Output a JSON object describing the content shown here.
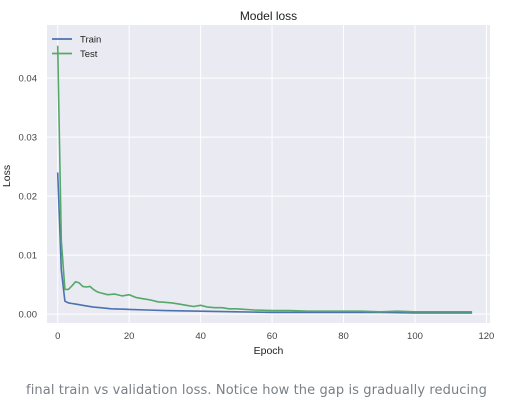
{
  "chart_data": {
    "type": "line",
    "title": "Model loss",
    "xlabel": "Epoch",
    "ylabel": "Loss",
    "xlim": [
      -3,
      121
    ],
    "ylim": [
      -0.0015,
      0.049
    ],
    "xticks": [
      0,
      20,
      40,
      60,
      80,
      100,
      120
    ],
    "yticks": [
      0.0,
      0.01,
      0.02,
      0.03,
      0.04
    ],
    "xtick_labels": [
      "0",
      "20",
      "40",
      "60",
      "80",
      "100",
      "120"
    ],
    "ytick_labels": [
      "0.00",
      "0.01",
      "0.02",
      "0.03",
      "0.04"
    ],
    "grid": true,
    "legend_position": "top-left",
    "series": [
      {
        "name": "Train",
        "color": "#4c72b0",
        "x": [
          0,
          1,
          2,
          3,
          4,
          5,
          6,
          8,
          10,
          12,
          15,
          20,
          25,
          30,
          40,
          50,
          60,
          70,
          80,
          90,
          100,
          110,
          116
        ],
        "y": [
          0.024,
          0.0075,
          0.0022,
          0.0019,
          0.0018,
          0.0017,
          0.0016,
          0.0014,
          0.0012,
          0.0011,
          0.0009,
          0.0008,
          0.0007,
          0.0006,
          0.0005,
          0.0004,
          0.0003,
          0.0003,
          0.0003,
          0.0003,
          0.0002,
          0.0002,
          0.0002
        ]
      },
      {
        "name": "Test",
        "color": "#55a868",
        "x": [
          0,
          1,
          2,
          3,
          4,
          5,
          6,
          7,
          8,
          9,
          10,
          11,
          12,
          14,
          16,
          18,
          20,
          22,
          24,
          26,
          28,
          30,
          32,
          34,
          36,
          38,
          40,
          42,
          44,
          46,
          48,
          50,
          55,
          60,
          65,
          70,
          75,
          80,
          85,
          90,
          95,
          100,
          105,
          110,
          116
        ],
        "y": [
          0.0455,
          0.0125,
          0.0042,
          0.0042,
          0.0048,
          0.0055,
          0.0053,
          0.0047,
          0.0046,
          0.0047,
          0.0042,
          0.0038,
          0.0036,
          0.0033,
          0.0034,
          0.0031,
          0.0033,
          0.0028,
          0.0026,
          0.0024,
          0.0021,
          0.002,
          0.0019,
          0.0017,
          0.0015,
          0.0013,
          0.0015,
          0.0012,
          0.0011,
          0.0011,
          0.0009,
          0.0009,
          0.0007,
          0.0006,
          0.0006,
          0.0005,
          0.0005,
          0.0005,
          0.0005,
          0.0004,
          0.0005,
          0.0004,
          0.0004,
          0.0004,
          0.0004
        ]
      }
    ]
  },
  "caption": "final train vs validation loss. Notice how the gap is gradually reducing"
}
